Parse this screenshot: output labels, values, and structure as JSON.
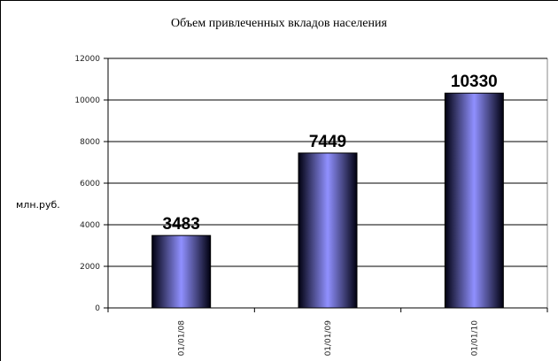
{
  "chart_data": {
    "type": "bar",
    "title": "Объем привлеченных вкладов населения",
    "xlabel": "",
    "ylabel": "млн.руб.",
    "categories": [
      "01/01/08",
      "01/01/09",
      "01/01/10"
    ],
    "values": [
      3483,
      7449,
      10330
    ],
    "data_labels": [
      "3483",
      "7449",
      "10330"
    ],
    "ylim": [
      0,
      12000
    ],
    "yticks": [
      0,
      2000,
      4000,
      6000,
      8000,
      10000,
      12000
    ],
    "grid": true,
    "legend": "none",
    "bar_color": "#8c8cff"
  }
}
